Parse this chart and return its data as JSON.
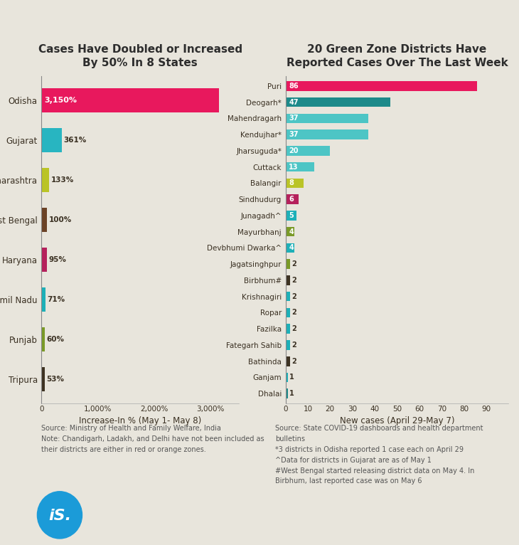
{
  "bg_color": "#e8e5dc",
  "left_title": "Cases Have Doubled or Increased\nBy 50% In 8 States",
  "right_title": "20 Green Zone Districts Have\nReported Cases Over The Last Week",
  "left_states": [
    "Tripura",
    "Punjab",
    "Tamil Nadu",
    "Haryana",
    "West Bengal",
    "Maharashtra",
    "Gujarat",
    "Odisha"
  ],
  "left_values": [
    3150,
    361,
    133,
    100,
    95,
    71,
    60,
    53
  ],
  "left_labels": [
    "3,150%",
    "361%",
    "133%",
    "100%",
    "95%",
    "71%",
    "60%",
    "53%"
  ],
  "left_colors": [
    "#e8185d",
    "#28b5c1",
    "#bac427",
    "#6b4226",
    "#b5215c",
    "#1db0b8",
    "#7a9a27",
    "#3d3222"
  ],
  "left_xlabel": "Increase-In % (May 1- May 8)",
  "left_xticks": [
    0,
    1000,
    2000,
    3000
  ],
  "left_xtick_labels": [
    "0",
    "1,000%",
    "2,000%",
    "3,000%"
  ],
  "right_districts": [
    "Dhalai",
    "Ganjam",
    "Bathinda",
    "Fategarh Sahib",
    "Fazilka",
    "Ropar",
    "Krishnagiri",
    "Birbhum#",
    "Jagatsinghpur",
    "Devbhumi Dwarka^",
    "Mayurbhanj",
    "Junagadh^",
    "Sindhudurg",
    "Balangir",
    "Cuttack",
    "Jharsuguda*",
    "Kendujhar*",
    "Mahendragarh",
    "Deogarh*",
    "Puri"
  ],
  "right_values": [
    86,
    47,
    37,
    37,
    20,
    13,
    8,
    6,
    5,
    4,
    4,
    2,
    2,
    2,
    2,
    2,
    2,
    2,
    1,
    1
  ],
  "right_colors": [
    "#e8185d",
    "#1d8a8a",
    "#4dc5c5",
    "#4dc5c5",
    "#4dc5c5",
    "#4dc5c5",
    "#bac427",
    "#b5215c",
    "#1db0b8",
    "#7a9a27",
    "#1db0b8",
    "#7a9a27",
    "#3d3222",
    "#1db0b8",
    "#1db0b8",
    "#1db0b8",
    "#1db0b8",
    "#3d3222",
    "#1db0b8",
    "#1d8a8a"
  ],
  "right_xlabel": "New cases (April 29-May 7)",
  "right_xticks": [
    0,
    10,
    20,
    30,
    40,
    50,
    60,
    70,
    80,
    90
  ],
  "left_note": "Source: Ministry of Health and Family Welfare, India\nNote: Chandigarh, Ladakh, and Delhi have not been included as\ntheir districts are either in red or orange zones.",
  "right_note": "Source: State COVID-19 dashboards and health department\nbulletins\n*3 districts in Odisha reported 1 case each on April 29\n^Data for districts in Gujarat are as of May 1\n#West Bengal started releasing district data on May 4. In\nBirbhum, last reported case was on May 6",
  "label_color_dark": "#3a3022",
  "label_color_light": "#ffffff",
  "title_color": "#2d2d2d"
}
